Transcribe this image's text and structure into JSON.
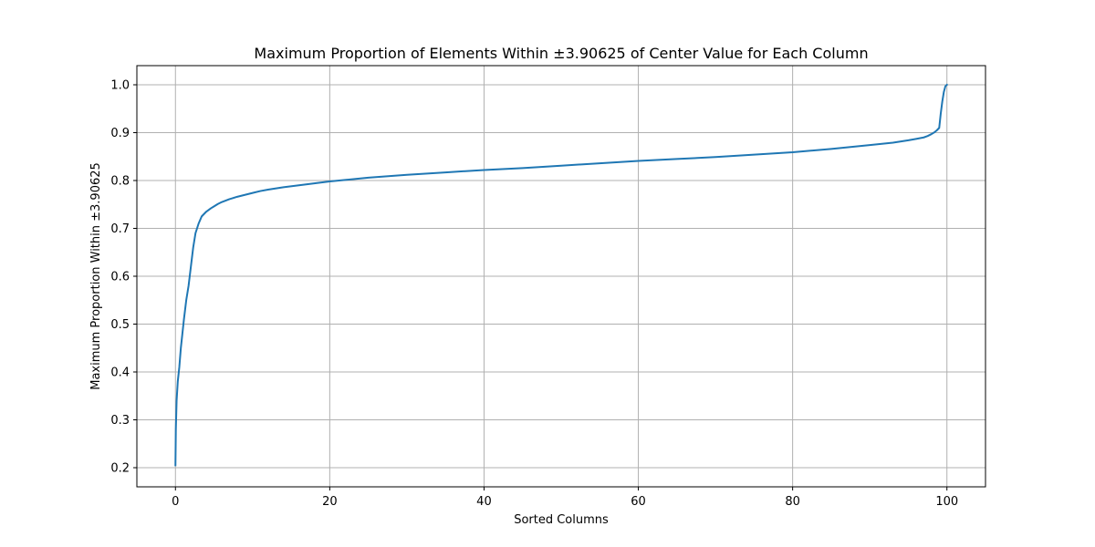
{
  "chart_data": {
    "type": "line",
    "title": "Maximum Proportion of Elements Within ±3.90625 of Center Value for Each Column",
    "xlabel": "Sorted Columns",
    "ylabel": "Maximum Proportion Within ±3.90625",
    "xlim": [
      -5,
      105
    ],
    "ylim": [
      0.16,
      1.04
    ],
    "xticks": [
      0,
      20,
      40,
      60,
      80,
      100
    ],
    "xtick_labels": [
      "0",
      "20",
      "40",
      "60",
      "80",
      "100"
    ],
    "yticks": [
      0.2,
      0.3,
      0.4,
      0.5,
      0.6,
      0.7,
      0.8,
      0.9,
      1.0
    ],
    "ytick_labels": [
      "0.2",
      "0.3",
      "0.4",
      "0.5",
      "0.6",
      "0.7",
      "0.8",
      "0.9",
      "1.0"
    ],
    "grid": true,
    "colors": {
      "series": "#1f77b4"
    },
    "series": [
      {
        "x": [
          0,
          0.05,
          0.15,
          0.3,
          0.5,
          0.7,
          0.9,
          1.1,
          1.4,
          1.7,
          2.0,
          2.3,
          2.6,
          3.0,
          3.4,
          4.0,
          4.6,
          5.0,
          5.5,
          6.0,
          7.0,
          8.0,
          9.0,
          10.0,
          11.0,
          12.0,
          14.0,
          16.0,
          18.0,
          20.0,
          25.0,
          30.0,
          35.0,
          40.0,
          45.0,
          50.0,
          55.0,
          60.0,
          65.0,
          70.0,
          75.0,
          80.0,
          85.0,
          90.0,
          93.0,
          95.0,
          96.0,
          97.0,
          97.5,
          98.0,
          98.4,
          98.7,
          99.0,
          99.2,
          99.4,
          99.6,
          99.8,
          100.0
        ],
        "y": [
          0.205,
          0.28,
          0.34,
          0.38,
          0.41,
          0.45,
          0.48,
          0.51,
          0.55,
          0.58,
          0.62,
          0.66,
          0.69,
          0.71,
          0.725,
          0.735,
          0.742,
          0.746,
          0.751,
          0.755,
          0.761,
          0.766,
          0.77,
          0.774,
          0.778,
          0.781,
          0.786,
          0.79,
          0.794,
          0.798,
          0.806,
          0.812,
          0.817,
          0.822,
          0.826,
          0.831,
          0.836,
          0.841,
          0.845,
          0.849,
          0.854,
          0.859,
          0.866,
          0.874,
          0.879,
          0.884,
          0.887,
          0.89,
          0.893,
          0.897,
          0.901,
          0.905,
          0.91,
          0.94,
          0.965,
          0.985,
          0.997,
          1.0
        ]
      }
    ]
  }
}
